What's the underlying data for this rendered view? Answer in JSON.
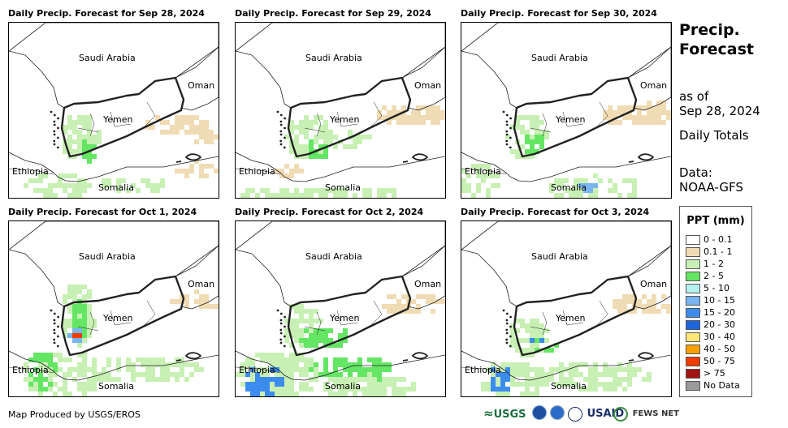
{
  "panels": [
    {
      "title": "Daily Precip. Forecast for Sep 28, 2024"
    },
    {
      "title": "Daily Precip. Forecast for Sep 29, 2024"
    },
    {
      "title": "Daily Precip. Forecast for Sep 30, 2024"
    },
    {
      "title": "Daily Precip. Forecast for Oct 1, 2024"
    },
    {
      "title": "Daily Precip. Forecast for Oct 2, 2024"
    },
    {
      "title": "Daily Precip. Forecast for Oct 3, 2024"
    }
  ],
  "map_labels": {
    "saudi": "Saudi Arabia",
    "oman": "Oman",
    "yemen": "Yemen",
    "ethiopia": "Ethiopia",
    "somalia": "Somalia"
  },
  "side": {
    "title_line1": "Precip.",
    "title_line2": "Forecast",
    "asof": "as of",
    "date": "Sep 28, 2024",
    "totals": "Daily Totals",
    "data_label": "Data:",
    "data_source": "NOAA-GFS"
  },
  "legend": {
    "title": "PPT (mm)",
    "items": [
      {
        "label": "0 - 0.1",
        "color": "#ffffff"
      },
      {
        "label": "0.1 - 1",
        "color": "#f0dcb4"
      },
      {
        "label": "1 - 2",
        "color": "#c8f0b4"
      },
      {
        "label": "2 - 5",
        "color": "#64e664"
      },
      {
        "label": "5 - 10",
        "color": "#b4f0f0"
      },
      {
        "label": "10 - 15",
        "color": "#78b4f0"
      },
      {
        "label": "15 - 20",
        "color": "#3c8cf0"
      },
      {
        "label": "20 - 30",
        "color": "#1e64dc"
      },
      {
        "label": "30 - 40",
        "color": "#ffe678"
      },
      {
        "label": "40 - 50",
        "color": "#ffa000"
      },
      {
        "label": "50 - 75",
        "color": "#f03c00"
      },
      {
        "label": "> 75",
        "color": "#a01414"
      },
      {
        "label": "No Data",
        "color": "#9a9a9a"
      }
    ]
  },
  "credit": "Map Produced by USGS/EROS",
  "logos": {
    "usgs": "USGS",
    "usaid": "USAID",
    "fews": "FEWS NET"
  }
}
